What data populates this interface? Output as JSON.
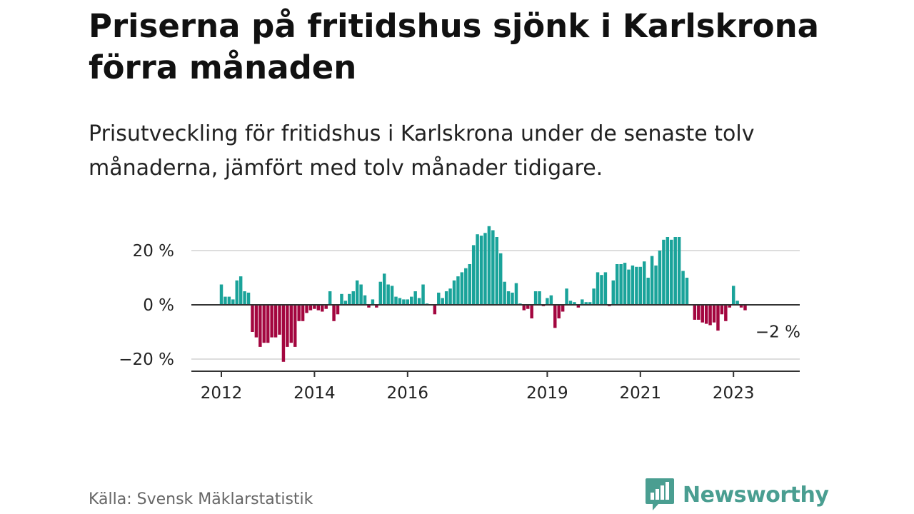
{
  "header": {
    "title": "Priserna på fritidshus sjönk i Karlskrona förra månaden",
    "subtitle": "Prisutveckling för fritidshus i Karlskrona under de senaste tolv månaderna, jämfört med tolv månader tidigare."
  },
  "footer": {
    "source": "Källa: Svensk Mäklarstatistik",
    "brand": "Newsworthy"
  },
  "colors": {
    "positive": "#1aa39a",
    "negative": "#a3063f",
    "brand": "#4a9e91",
    "axis": "#333333",
    "grid": "#dddddd"
  },
  "icons": {
    "brand_logo": "newsworthy-bar-chart-icon"
  },
  "chart_data": {
    "type": "bar",
    "title": "Priserna på fritidshus sjönk i Karlskrona förra månaden",
    "subtitle": "Prisutveckling för fritidshus i Karlskrona under de senaste tolv månaderna, jämfört med tolv månader tidigare.",
    "xlabel": "",
    "ylabel": "",
    "x_start": "2012-01",
    "x_end": "2023-12",
    "x_ticks": [
      {
        "label": "2012",
        "date": "2012-01"
      },
      {
        "label": "2014",
        "date": "2014-01"
      },
      {
        "label": "2016",
        "date": "2016-01"
      },
      {
        "label": "2019",
        "date": "2019-01"
      },
      {
        "label": "2021",
        "date": "2021-01"
      },
      {
        "label": "2023",
        "date": "2023-01"
      }
    ],
    "y_ticks": [
      {
        "label": "20 %",
        "value": 20
      },
      {
        "label": "0 %",
        "value": 0
      },
      {
        "label": "−20 %",
        "value": -20
      }
    ],
    "ylim": [
      -25,
      29
    ],
    "grid": true,
    "unit": "%",
    "annotation": {
      "label": "−2 %",
      "date": "2023-12",
      "value": -2
    },
    "values": [
      7.5,
      3,
      3,
      2,
      9,
      10.5,
      5,
      4.5,
      -10,
      -12,
      -15.5,
      -14,
      -14,
      -12,
      -12,
      -11,
      -21,
      -15.5,
      -14,
      -15.5,
      -6,
      -6,
      -3,
      -2,
      -1.5,
      -2,
      -2.5,
      -1.5,
      5,
      -6,
      -3.5,
      4,
      1.5,
      4,
      5,
      9,
      7.5,
      3.5,
      -1,
      2,
      -1,
      8.5,
      11.5,
      7.5,
      7,
      3,
      2.5,
      2,
      2,
      3,
      5,
      2.5,
      7.5,
      0.5,
      0,
      -3.5,
      4.5,
      2.5,
      5,
      6,
      9,
      10.5,
      12,
      13.5,
      15,
      22,
      26,
      25.5,
      26.5,
      29,
      27.5,
      25,
      19,
      8.5,
      5,
      4.5,
      8,
      0.5,
      -2,
      -1.5,
      -5,
      5,
      5,
      -0.5,
      2.5,
      3.5,
      -8.5,
      -5,
      -2.5,
      6,
      1.5,
      1,
      -1,
      2,
      1,
      1,
      6,
      12,
      11,
      12,
      -0.5,
      9,
      15,
      15,
      15.5,
      13,
      14.5,
      14,
      14,
      16,
      10,
      18,
      14.5,
      20,
      24,
      25,
      24,
      25,
      25,
      12.5,
      10,
      0,
      -5.5,
      -5.5,
      -6.5,
      -7,
      -7.5,
      -6.5,
      -9.5,
      -3.5,
      -6,
      -1,
      7,
      1.5,
      -1,
      -2
    ]
  }
}
